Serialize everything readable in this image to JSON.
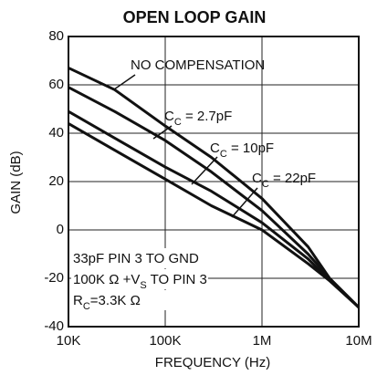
{
  "chart_data": {
    "type": "line",
    "title": "OPEN LOOP GAIN",
    "xlabel": "FREQUENCY (Hz)",
    "ylabel": "GAIN (dB)",
    "xscale": "log",
    "xlim": [
      10000,
      10000000
    ],
    "xticks": [
      {
        "value": 10000,
        "label": "10K"
      },
      {
        "value": 100000,
        "label": "100K"
      },
      {
        "value": 1000000,
        "label": "1M"
      },
      {
        "value": 10000000,
        "label": "10M"
      }
    ],
    "ylim": [
      -40,
      80
    ],
    "yticks": [
      -40,
      -20,
      0,
      20,
      40,
      60,
      80
    ],
    "grid": true,
    "x": [
      10000,
      30000,
      100000,
      300000,
      1000000,
      3000000,
      5000000,
      10000000
    ],
    "series": [
      {
        "label": [
          {
            "text": "NO COMPENSATION"
          }
        ],
        "color": "#111111",
        "values": [
          67,
          58,
          43,
          30,
          13,
          -7,
          -20,
          -32
        ]
      },
      {
        "label": [
          {
            "text": "C"
          },
          {
            "text": "C",
            "sub": true
          },
          {
            "text": " = 2.7pF"
          }
        ],
        "color": "#111111",
        "values": [
          59,
          49,
          37,
          24,
          8,
          -10,
          -20,
          -32
        ]
      },
      {
        "label": [
          {
            "text": "C"
          },
          {
            "text": "C",
            "sub": true
          },
          {
            "text": " = 10pF"
          }
        ],
        "color": "#111111",
        "values": [
          49,
          38,
          26,
          16,
          3,
          -12,
          -21,
          -32
        ]
      },
      {
        "label": [
          {
            "text": "C"
          },
          {
            "text": "C",
            "sub": true
          },
          {
            "text": " = 22pF"
          }
        ],
        "color": "#111111",
        "values": [
          44,
          33,
          21,
          10,
          0,
          -14,
          -21,
          -32
        ]
      }
    ],
    "annotations": [
      [
        {
          "text": "33pF PIN 3 TO GND"
        }
      ],
      [
        {
          "text": "100K Ω +V"
        },
        {
          "text": "S",
          "sub": true
        },
        {
          "text": " TO PIN 3"
        }
      ],
      [
        {
          "text": "R"
        },
        {
          "text": "C",
          "sub": true
        },
        {
          "text": "=3.3K Ω"
        }
      ]
    ]
  }
}
